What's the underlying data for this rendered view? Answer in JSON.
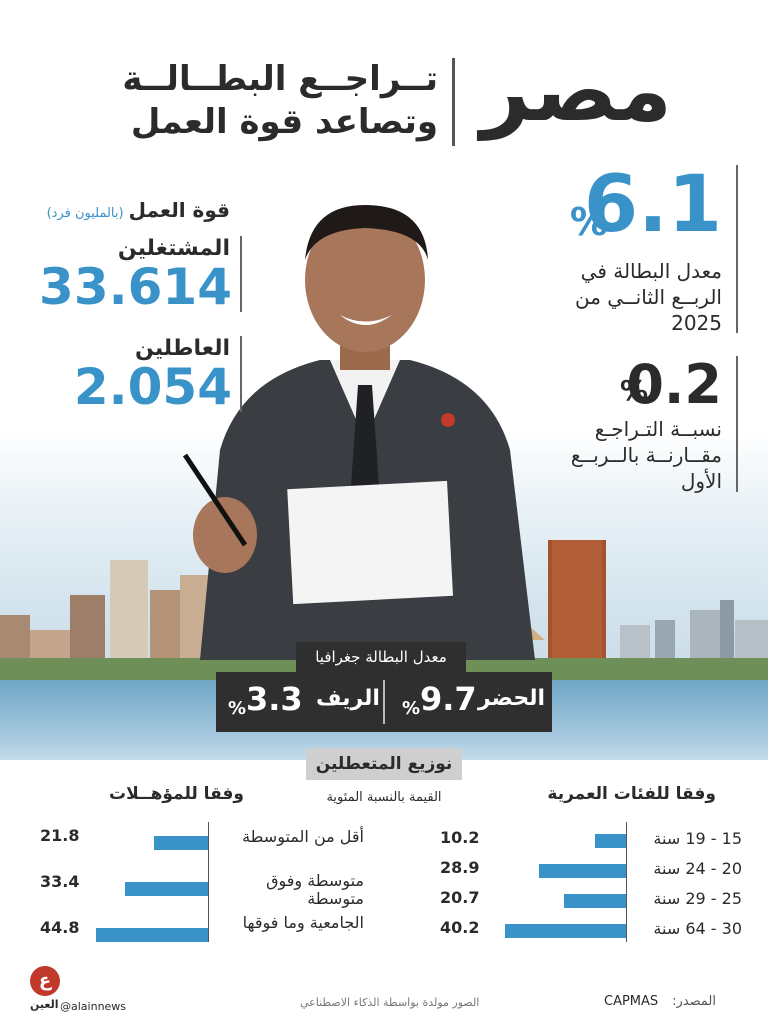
{
  "header": {
    "country": "مصر",
    "title_line1": "تــراجــع البطــالــة",
    "title_line2": "وتصاعد قوة العمل"
  },
  "unemployment": {
    "value": "6.1",
    "percent_sign": "%",
    "description": [
      "معدل البطالة في",
      "الربــع الثانــي من",
      "2025"
    ]
  },
  "decline": {
    "value": "0.2",
    "percent_sign": "%",
    "description": [
      "نسبــة التـراجـع",
      "مقــارنــة بالــربــع",
      "الأول"
    ]
  },
  "labor_force": {
    "label": "قوة العمل",
    "unit": "(بالمليون فرد)",
    "employed_label": "المشتغلين",
    "employed_value": "33.614",
    "unemployed_label": "العاطلين",
    "unemployed_value": "2.054"
  },
  "geography": {
    "title": "معدل البطالة جغرافيا",
    "urban_label": "الحضر",
    "urban_value": "9.7",
    "rural_label": "الريف",
    "rural_value": "3.3",
    "percent_sign": "%"
  },
  "distribution": {
    "title": "نوزيع المتعطلين",
    "subtitle": "القيمة بالنسبة المئوية"
  },
  "chart_data": [
    {
      "type": "bar",
      "title": "وفقا للفئات العمرية",
      "categories": [
        "15 - 19 سنة",
        "20 - 24 سنة",
        "25 - 29 سنة",
        "30 - 64 سنة"
      ],
      "values": [
        10.2,
        28.9,
        20.7,
        40.2
      ],
      "value_labels": [
        "10.2",
        "28.9",
        "20.7",
        "40.2"
      ],
      "orientation": "horizontal"
    },
    {
      "type": "bar",
      "title": "وفقا للمؤهــلات",
      "categories": [
        "أقل من المتوسطة",
        "متوسطة وفوق متوسطة",
        "الجامعية وما فوقها"
      ],
      "values": [
        21.8,
        33.4,
        44.8
      ],
      "value_labels": [
        "21.8",
        "33.4",
        "44.8"
      ],
      "orientation": "horizontal"
    }
  ],
  "footer": {
    "source_label": "المصدر:",
    "source_value": "CAPMAS",
    "ai_note": "الصور مولدة بواسطة الذكاء الاصطناعي",
    "handle": "@alainnews",
    "logo_text": "العين",
    "logo_mark": "ع"
  },
  "colors": {
    "accent": "#3a93c8",
    "dark": "#2f2f2f",
    "text": "#2b2b2b"
  }
}
